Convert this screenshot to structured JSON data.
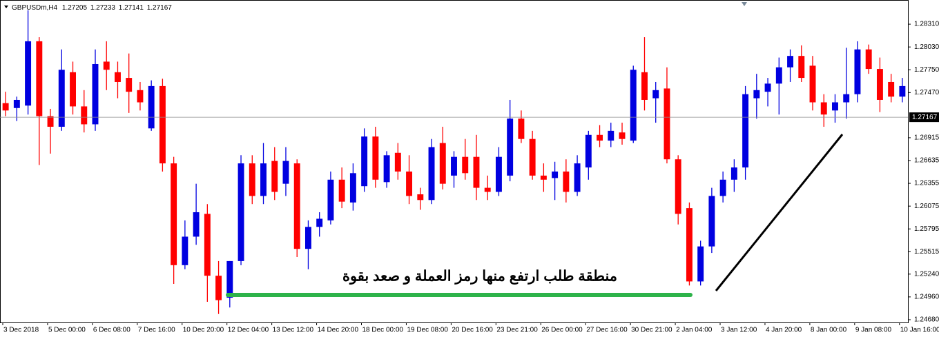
{
  "chart_data": {
    "type": "candlestick",
    "header": {
      "symbol": "GBPUSDm,H4",
      "open": 1.27205,
      "high": 1.27233,
      "low": 1.27141,
      "close": 1.27167
    },
    "annotation": "منطقة طلب ارتفع منها رمز العملة و صعد بقوة",
    "bull_color": "#0000e0",
    "bear_color": "#ff0000",
    "x_labels": [
      "3 Dec 2018",
      "5 Dec 00:00",
      "6 Dec 08:00",
      "7 Dec 16:00",
      "10 Dec 20:00",
      "12 Dec 04:00",
      "13 Dec 12:00",
      "14 Dec 20:00",
      "18 Dec 00:00",
      "19 Dec 08:00",
      "20 Dec 16:00",
      "23 Dec 21:00",
      "26 Dec 00:00",
      "27 Dec 16:00",
      "30 Dec 21:00",
      "2 Jan 04:00",
      "3 Jan 12:00",
      "4 Jan 20:00",
      "8 Jan 00:00",
      "9 Jan 08:00",
      "10 Jan 16:00"
    ],
    "open": [
      1.2734,
      1.2728,
      1.2731,
      1.281,
      1.2718,
      1.2705,
      1.2772,
      1.273,
      1.2708,
      1.2785,
      1.2772,
      1.2765,
      1.275,
      1.2703,
      1.2755,
      1.266,
      1.2535,
      1.257,
      1.2598,
      1.2522,
      1.2495,
      1.254,
      1.266,
      1.262,
      1.2663,
      1.2635,
      1.266,
      1.2555,
      1.2582,
      1.259,
      1.264,
      1.2612,
      1.2632,
      1.2693,
      1.2637,
      1.2673,
      1.265,
      1.2622,
      1.2615,
      1.2685,
      1.2645,
      1.2668,
      1.2668,
      1.263,
      1.2625,
      1.2645,
      1.2715,
      1.269,
      1.2645,
      1.2642,
      1.265,
      1.2625,
      1.2655,
      1.2695,
      1.2688,
      1.2698,
      1.2688,
      1.2772,
      1.274,
      1.2752,
      1.2665,
      1.2605,
      1.2515,
      1.2558,
      1.262,
      1.264,
      1.2655,
      1.274,
      1.2748,
      1.2758,
      1.2778,
      1.2792,
      1.278,
      1.2735,
      1.2725,
      1.2735,
      1.2745,
      1.28,
      1.2776,
      1.276,
      1.2742
    ],
    "high": [
      1.2748,
      1.2742,
      1.2848,
      1.2815,
      1.2727,
      1.28,
      1.2785,
      1.275,
      1.28,
      1.281,
      1.2785,
      1.2795,
      1.276,
      1.2762,
      1.2764,
      1.2668,
      1.259,
      1.2635,
      1.261,
      1.254,
      1.254,
      1.267,
      1.267,
      1.2685,
      1.268,
      1.268,
      1.2665,
      1.259,
      1.26,
      1.265,
      1.2655,
      1.266,
      1.2703,
      1.2705,
      1.2675,
      1.2685,
      1.267,
      1.263,
      1.269,
      1.2705,
      1.2675,
      1.269,
      1.2695,
      1.2645,
      1.268,
      1.2738,
      1.2725,
      1.27,
      1.266,
      1.2662,
      1.2665,
      1.267,
      1.27,
      1.2707,
      1.271,
      1.271,
      1.278,
      1.2815,
      1.276,
      1.2778,
      1.267,
      1.2612,
      1.2565,
      1.263,
      1.265,
      1.2665,
      1.2755,
      1.277,
      1.2765,
      1.279,
      1.28,
      1.2805,
      1.2792,
      1.2745,
      1.2745,
      1.2802,
      1.281,
      1.2806,
      1.279,
      1.277,
      1.2765
    ],
    "low": [
      1.2718,
      1.2712,
      1.272,
      1.2658,
      1.2672,
      1.27,
      1.272,
      1.2698,
      1.27,
      1.275,
      1.274,
      1.2722,
      1.2725,
      1.27,
      1.265,
      1.2512,
      1.253,
      1.256,
      1.249,
      1.2475,
      1.2483,
      1.2535,
      1.261,
      1.261,
      1.2615,
      1.262,
      1.2545,
      1.253,
      1.257,
      1.2585,
      1.2605,
      1.2602,
      1.2625,
      1.263,
      1.263,
      1.264,
      1.261,
      1.2603,
      1.261,
      1.2628,
      1.263,
      1.264,
      1.2615,
      1.2615,
      1.262,
      1.2638,
      1.2685,
      1.264,
      1.2625,
      1.2615,
      1.2612,
      1.262,
      1.264,
      1.268,
      1.268,
      1.2683,
      1.2685,
      1.2725,
      1.271,
      1.266,
      1.2585,
      1.251,
      1.251,
      1.255,
      1.2612,
      1.2625,
      1.264,
      1.2715,
      1.273,
      1.272,
      1.276,
      1.276,
      1.2725,
      1.2705,
      1.271,
      1.2715,
      1.2735,
      1.277,
      1.2723,
      1.2735,
      1.2735
    ],
    "close": [
      1.2725,
      1.2738,
      1.281,
      1.2718,
      1.2705,
      1.2775,
      1.273,
      1.2708,
      1.2782,
      1.2775,
      1.276,
      1.2748,
      1.2735,
      1.2755,
      1.266,
      1.2535,
      1.257,
      1.26,
      1.2522,
      1.2492,
      1.254,
      1.266,
      1.262,
      1.266,
      1.2625,
      1.2663,
      1.2555,
      1.2582,
      1.2592,
      1.264,
      1.2613,
      1.2648,
      1.2693,
      1.264,
      1.267,
      1.265,
      1.262,
      1.2615,
      1.268,
      1.2635,
      1.2668,
      1.2648,
      1.263,
      1.2625,
      1.2668,
      1.2715,
      1.269,
      1.2645,
      1.264,
      1.265,
      1.2625,
      1.266,
      1.2695,
      1.2688,
      1.27,
      1.269,
      1.2775,
      1.2738,
      1.275,
      1.2665,
      1.2598,
      1.2515,
      1.2558,
      1.262,
      1.264,
      1.2655,
      1.2745,
      1.275,
      1.2758,
      1.2778,
      1.2792,
      1.2765,
      1.2735,
      1.272,
      1.2735,
      1.2745,
      1.28,
      1.2776,
      1.2738,
      1.2742,
      1.2755
    ],
    "ylim": [
      1.24629,
      1.28607
    ],
    "yticks": [
      {
        "value": 1.2831,
        "label": "1.28310"
      },
      {
        "value": 1.2803,
        "label": "1.28030"
      },
      {
        "value": 1.2775,
        "label": "1.27750"
      },
      {
        "value": 1.2747,
        "label": "1.27470"
      },
      1.26915,
      1.26635,
      1.26355,
      1.26075,
      1.25795,
      1.25515,
      {
        "value": 1.2524,
        "label": "1.25240"
      },
      {
        "value": 1.2496,
        "label": "1.24960"
      },
      {
        "value": 1.2468,
        "label": "1.24680"
      }
    ]
  }
}
